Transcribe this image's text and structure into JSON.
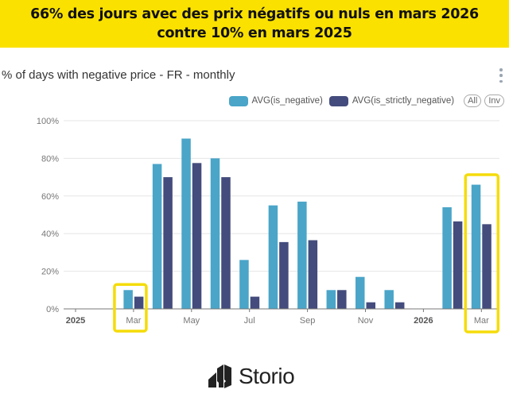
{
  "banner": {
    "line1": "66% des jours avec des prix négatifs ou nuls en mars 2026",
    "line2": "contre 10% en mars 2025"
  },
  "header": {
    "title": "% of days with negative price - FR - monthly",
    "menu_icon": "vertical-ellipsis-icon"
  },
  "legend": {
    "items": [
      {
        "label": "AVG(is_negative)",
        "color": "#4aa5c8"
      },
      {
        "label": "AVG(is_strictly_negative)",
        "color": "#434c7c"
      }
    ],
    "all_label": "All",
    "inv_label": "Inv"
  },
  "highlight_color": "#f5dc0a",
  "brand": {
    "name": "Storio",
    "icon": "storio-logo-icon"
  },
  "chart_data": {
    "type": "bar",
    "title": "% of days with negative price - FR - monthly",
    "xlabel": "",
    "ylabel": "",
    "ylim": [
      0,
      100
    ],
    "yticks": [
      "0%",
      "20%",
      "40%",
      "60%",
      "80%",
      "100%"
    ],
    "ytick_values": [
      0,
      20,
      40,
      60,
      80,
      100
    ],
    "grid": true,
    "legend_position": "top-right",
    "categories": [
      "2025-01",
      "2025-02",
      "2025-03",
      "2025-04",
      "2025-05",
      "2025-06",
      "2025-07",
      "2025-08",
      "2025-09",
      "2025-10",
      "2025-11",
      "2025-12",
      "2026-01",
      "2026-02",
      "2026-03"
    ],
    "xticks": [
      {
        "label": "2025",
        "index": 0,
        "bold": true
      },
      {
        "label": "Mar",
        "index": 2,
        "bold": false
      },
      {
        "label": "May",
        "index": 4,
        "bold": false
      },
      {
        "label": "Jul",
        "index": 6,
        "bold": false
      },
      {
        "label": "Sep",
        "index": 8,
        "bold": false
      },
      {
        "label": "Nov",
        "index": 10,
        "bold": false
      },
      {
        "label": "2026",
        "index": 12,
        "bold": true
      },
      {
        "label": "Mar",
        "index": 14,
        "bold": false
      }
    ],
    "series": [
      {
        "name": "AVG(is_negative)",
        "color": "#4aa5c8",
        "values": [
          0,
          0,
          10,
          77,
          90.5,
          80,
          26,
          55,
          57,
          10,
          17,
          10,
          0,
          54,
          66
        ]
      },
      {
        "name": "AVG(is_strictly_negative)",
        "color": "#434c7c",
        "values": [
          0,
          0,
          6.5,
          70,
          77.5,
          70,
          6.5,
          35.5,
          36.5,
          10,
          3.5,
          3.5,
          0,
          46.5,
          45
        ]
      }
    ],
    "highlighted_categories": [
      "2025-03",
      "2026-03"
    ]
  }
}
